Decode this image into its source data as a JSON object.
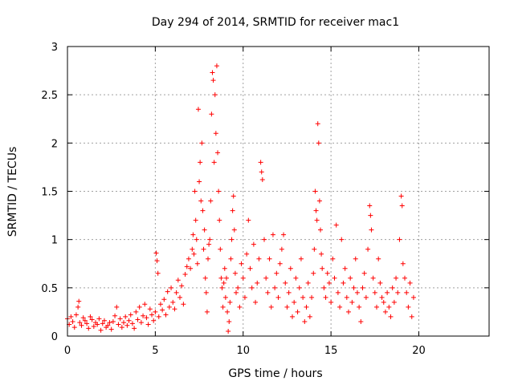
{
  "chart_data": {
    "type": "scatter",
    "title": "Day 294 of 2014, SRMTID for receiver mac1",
    "xlabel": "GPS time / hours",
    "ylabel": "SRMTID / TECUs",
    "xlim": [
      0,
      24
    ],
    "ylim": [
      0,
      3
    ],
    "xticks": [
      0,
      5,
      10,
      15,
      20
    ],
    "xtick_labels": [
      "0",
      "5",
      "10",
      "15",
      "20"
    ],
    "yticks": [
      0,
      0.5,
      1,
      1.5,
      2,
      2.5,
      3
    ],
    "ytick_labels": [
      "0",
      "0.5",
      "1",
      "1.5",
      "2",
      "2.5",
      "3"
    ],
    "grid": true,
    "marker": "+",
    "color": "#ff0000",
    "series": [
      {
        "name": "SRMTID",
        "points": [
          [
            0.0,
            0.18
          ],
          [
            0.1,
            0.12
          ],
          [
            0.2,
            0.2
          ],
          [
            0.3,
            0.15
          ],
          [
            0.4,
            0.09
          ],
          [
            0.5,
            0.22
          ],
          [
            0.6,
            0.3
          ],
          [
            0.65,
            0.36
          ],
          [
            0.7,
            0.14
          ],
          [
            0.8,
            0.11
          ],
          [
            0.9,
            0.19
          ],
          [
            1.0,
            0.16
          ],
          [
            1.1,
            0.13
          ],
          [
            1.2,
            0.08
          ],
          [
            1.3,
            0.2
          ],
          [
            1.4,
            0.17
          ],
          [
            1.5,
            0.1
          ],
          [
            1.6,
            0.14
          ],
          [
            1.7,
            0.12
          ],
          [
            1.8,
            0.18
          ],
          [
            1.9,
            0.06
          ],
          [
            2.0,
            0.13
          ],
          [
            2.1,
            0.16
          ],
          [
            2.2,
            0.09
          ],
          [
            2.3,
            0.11
          ],
          [
            2.4,
            0.14
          ],
          [
            2.5,
            0.07
          ],
          [
            2.6,
            0.15
          ],
          [
            2.7,
            0.21
          ],
          [
            2.8,
            0.3
          ],
          [
            2.9,
            0.12
          ],
          [
            3.0,
            0.18
          ],
          [
            3.1,
            0.09
          ],
          [
            3.2,
            0.14
          ],
          [
            3.3,
            0.2
          ],
          [
            3.4,
            0.11
          ],
          [
            3.5,
            0.16
          ],
          [
            3.6,
            0.22
          ],
          [
            3.7,
            0.13
          ],
          [
            3.8,
            0.08
          ],
          [
            3.9,
            0.25
          ],
          [
            4.0,
            0.17
          ],
          [
            4.1,
            0.3
          ],
          [
            4.2,
            0.14
          ],
          [
            4.3,
            0.21
          ],
          [
            4.4,
            0.33
          ],
          [
            4.5,
            0.19
          ],
          [
            4.6,
            0.12
          ],
          [
            4.7,
            0.28
          ],
          [
            4.8,
            0.22
          ],
          [
            4.9,
            0.16
          ],
          [
            5.0,
            0.25
          ],
          [
            5.05,
            0.86
          ],
          [
            5.1,
            0.78
          ],
          [
            5.15,
            0.65
          ],
          [
            5.2,
            0.2
          ],
          [
            5.3,
            0.33
          ],
          [
            5.4,
            0.27
          ],
          [
            5.5,
            0.38
          ],
          [
            5.6,
            0.22
          ],
          [
            5.7,
            0.46
          ],
          [
            5.8,
            0.3
          ],
          [
            5.9,
            0.5
          ],
          [
            6.0,
            0.35
          ],
          [
            6.1,
            0.28
          ],
          [
            6.2,
            0.45
          ],
          [
            6.3,
            0.58
          ],
          [
            6.4,
            0.4
          ],
          [
            6.5,
            0.52
          ],
          [
            6.6,
            0.33
          ],
          [
            6.7,
            0.64
          ],
          [
            6.8,
            0.72
          ],
          [
            6.9,
            0.8
          ],
          [
            7.0,
            0.7
          ],
          [
            7.1,
            0.9
          ],
          [
            7.15,
            1.05
          ],
          [
            7.2,
            0.85
          ],
          [
            7.25,
            1.5
          ],
          [
            7.3,
            1.2
          ],
          [
            7.35,
            1.0
          ],
          [
            7.4,
            0.75
          ],
          [
            7.45,
            2.35
          ],
          [
            7.5,
            1.6
          ],
          [
            7.55,
            1.8
          ],
          [
            7.6,
            1.4
          ],
          [
            7.65,
            2.0
          ],
          [
            7.7,
            1.3
          ],
          [
            7.75,
            0.9
          ],
          [
            7.8,
            1.1
          ],
          [
            7.85,
            0.6
          ],
          [
            7.9,
            0.45
          ],
          [
            7.95,
            0.25
          ],
          [
            8.0,
            0.8
          ],
          [
            8.05,
            0.95
          ],
          [
            8.1,
            1.0
          ],
          [
            8.15,
            1.4
          ],
          [
            8.2,
            2.3
          ],
          [
            8.25,
            2.73
          ],
          [
            8.3,
            2.65
          ],
          [
            8.35,
            1.8
          ],
          [
            8.4,
            2.5
          ],
          [
            8.45,
            2.1
          ],
          [
            8.5,
            2.8
          ],
          [
            8.55,
            1.9
          ],
          [
            8.6,
            1.5
          ],
          [
            8.65,
            1.2
          ],
          [
            8.7,
            0.9
          ],
          [
            8.75,
            0.6
          ],
          [
            8.8,
            0.5
          ],
          [
            8.85,
            0.3
          ],
          [
            8.9,
            0.55
          ],
          [
            8.95,
            0.7
          ],
          [
            9.0,
            0.4
          ],
          [
            9.05,
            0.6
          ],
          [
            9.1,
            0.25
          ],
          [
            9.15,
            0.05
          ],
          [
            9.2,
            0.15
          ],
          [
            9.25,
            0.35
          ],
          [
            9.3,
            0.8
          ],
          [
            9.35,
            1.0
          ],
          [
            9.4,
            1.3
          ],
          [
            9.45,
            1.45
          ],
          [
            9.5,
            1.1
          ],
          [
            9.55,
            0.65
          ],
          [
            9.6,
            0.45
          ],
          [
            9.7,
            0.5
          ],
          [
            9.8,
            0.3
          ],
          [
            9.9,
            0.75
          ],
          [
            10.0,
            0.6
          ],
          [
            10.1,
            0.4
          ],
          [
            10.2,
            0.85
          ],
          [
            10.3,
            1.2
          ],
          [
            10.4,
            0.7
          ],
          [
            10.5,
            0.5
          ],
          [
            10.6,
            0.95
          ],
          [
            10.7,
            0.35
          ],
          [
            10.8,
            0.55
          ],
          [
            10.9,
            0.8
          ],
          [
            11.0,
            1.8
          ],
          [
            11.05,
            1.7
          ],
          [
            11.1,
            1.62
          ],
          [
            11.2,
            1.0
          ],
          [
            11.3,
            0.6
          ],
          [
            11.4,
            0.45
          ],
          [
            11.5,
            0.8
          ],
          [
            11.6,
            0.3
          ],
          [
            11.7,
            1.05
          ],
          [
            11.8,
            0.5
          ],
          [
            11.9,
            0.65
          ],
          [
            12.0,
            0.4
          ],
          [
            12.1,
            0.75
          ],
          [
            12.2,
            0.9
          ],
          [
            12.3,
            1.05
          ],
          [
            12.4,
            0.55
          ],
          [
            12.5,
            0.3
          ],
          [
            12.6,
            0.45
          ],
          [
            12.7,
            0.7
          ],
          [
            12.8,
            0.2
          ],
          [
            12.9,
            0.35
          ],
          [
            13.0,
            0.6
          ],
          [
            13.1,
            0.25
          ],
          [
            13.2,
            0.5
          ],
          [
            13.3,
            0.8
          ],
          [
            13.4,
            0.4
          ],
          [
            13.5,
            0.15
          ],
          [
            13.6,
            0.3
          ],
          [
            13.7,
            0.55
          ],
          [
            13.8,
            0.2
          ],
          [
            13.9,
            0.4
          ],
          [
            14.0,
            0.65
          ],
          [
            14.05,
            0.9
          ],
          [
            14.1,
            1.5
          ],
          [
            14.15,
            1.3
          ],
          [
            14.2,
            1.2
          ],
          [
            14.25,
            2.2
          ],
          [
            14.3,
            2.0
          ],
          [
            14.35,
            1.4
          ],
          [
            14.4,
            1.1
          ],
          [
            14.45,
            0.85
          ],
          [
            14.5,
            0.7
          ],
          [
            14.6,
            0.5
          ],
          [
            14.7,
            0.4
          ],
          [
            14.8,
            0.65
          ],
          [
            14.9,
            0.55
          ],
          [
            15.0,
            0.35
          ],
          [
            15.1,
            0.8
          ],
          [
            15.2,
            0.6
          ],
          [
            15.3,
            1.15
          ],
          [
            15.4,
            0.45
          ],
          [
            15.5,
            0.3
          ],
          [
            15.6,
            1.0
          ],
          [
            15.7,
            0.55
          ],
          [
            15.8,
            0.7
          ],
          [
            15.9,
            0.4
          ],
          [
            16.0,
            0.25
          ],
          [
            16.1,
            0.6
          ],
          [
            16.2,
            0.35
          ],
          [
            16.3,
            0.5
          ],
          [
            16.4,
            0.8
          ],
          [
            16.5,
            0.45
          ],
          [
            16.6,
            0.3
          ],
          [
            16.7,
            0.15
          ],
          [
            16.8,
            0.5
          ],
          [
            16.9,
            0.65
          ],
          [
            17.0,
            0.4
          ],
          [
            17.1,
            0.9
          ],
          [
            17.2,
            1.35
          ],
          [
            17.25,
            1.25
          ],
          [
            17.3,
            1.1
          ],
          [
            17.4,
            0.6
          ],
          [
            17.5,
            0.45
          ],
          [
            17.6,
            0.3
          ],
          [
            17.7,
            0.8
          ],
          [
            17.8,
            0.55
          ],
          [
            17.9,
            0.4
          ],
          [
            18.0,
            0.35
          ],
          [
            18.1,
            0.25
          ],
          [
            18.2,
            0.45
          ],
          [
            18.3,
            0.3
          ],
          [
            18.4,
            0.2
          ],
          [
            18.5,
            0.5
          ],
          [
            18.6,
            0.35
          ],
          [
            18.7,
            0.6
          ],
          [
            18.8,
            0.45
          ],
          [
            18.9,
            1.0
          ],
          [
            19.0,
            1.45
          ],
          [
            19.05,
            1.35
          ],
          [
            19.1,
            0.75
          ],
          [
            19.2,
            0.6
          ],
          [
            19.3,
            0.45
          ],
          [
            19.4,
            0.3
          ],
          [
            19.5,
            0.55
          ],
          [
            19.6,
            0.2
          ],
          [
            19.7,
            0.4
          ]
        ]
      }
    ]
  }
}
